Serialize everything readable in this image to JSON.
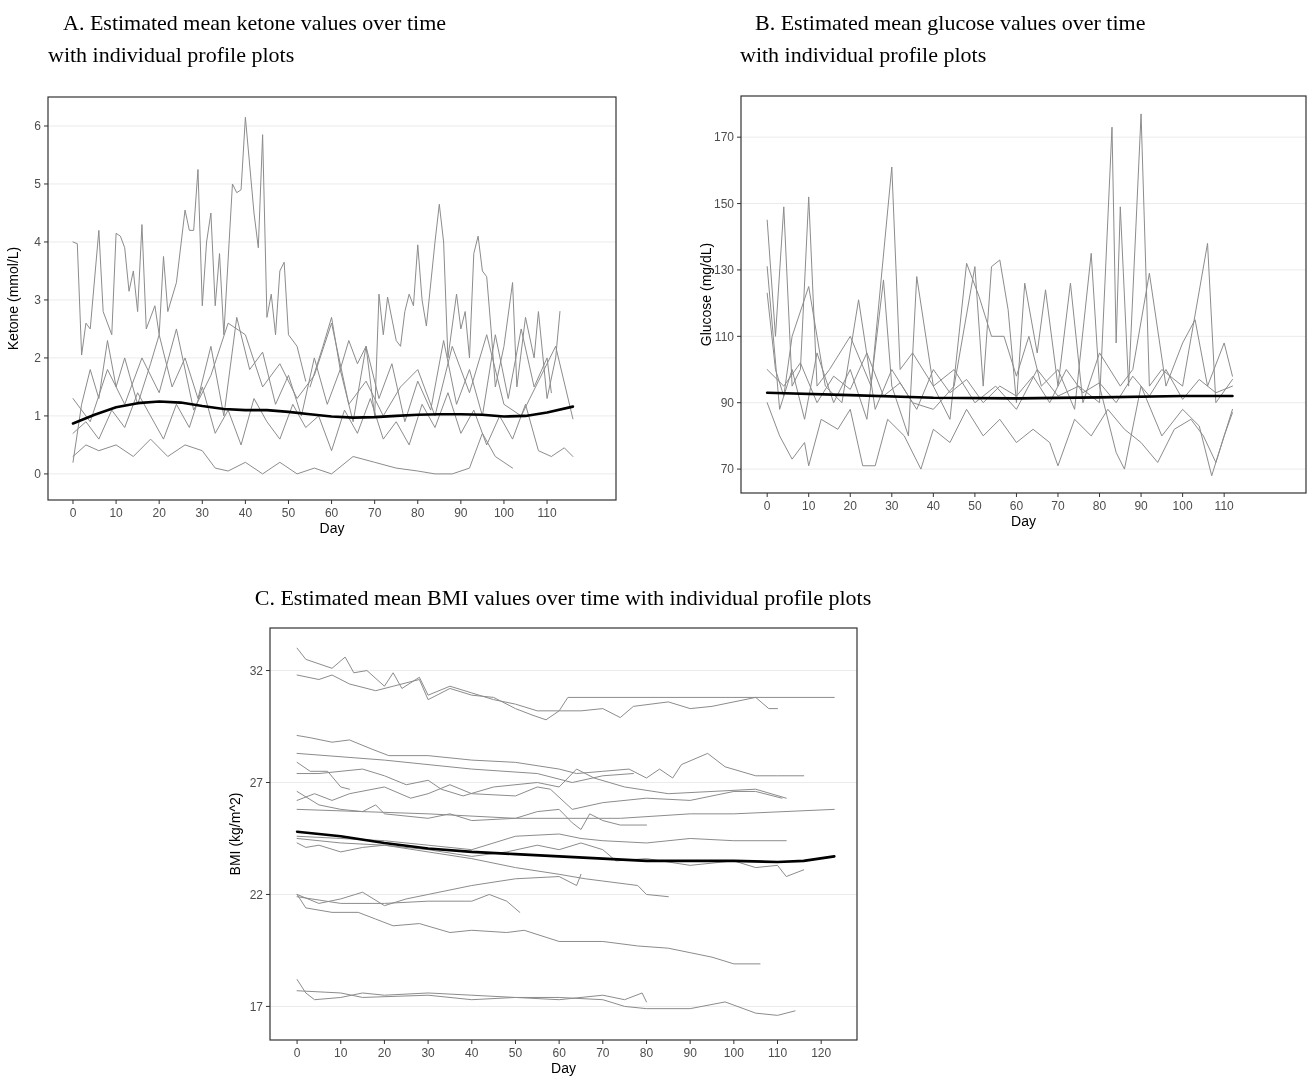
{
  "chart_data": [
    {
      "type": "line",
      "title": "A. Estimated mean ketone values over time with individual profile plots",
      "xlabel": "Day",
      "ylabel": "Ketone (mmol/L)",
      "xlim": [
        -5.8,
        126
      ],
      "ylim": [
        -0.45,
        6.5
      ],
      "xticks": [
        0,
        10,
        20,
        30,
        40,
        50,
        60,
        70,
        80,
        90,
        100,
        110
      ],
      "yticks": [
        0,
        1,
        2,
        3,
        4,
        5,
        6
      ],
      "grid": "y",
      "series": [
        {
          "color": "#8c8c8c",
          "x": [
            0,
            1,
            2,
            3,
            4,
            6,
            7,
            9,
            10,
            11,
            12,
            13,
            14,
            15,
            16,
            17,
            19,
            20,
            21,
            22,
            24,
            26,
            27,
            28,
            29,
            30,
            31,
            32,
            33,
            34,
            35,
            37,
            38,
            39,
            40,
            42,
            43,
            44,
            45,
            46,
            47,
            48,
            49,
            50,
            52,
            54
          ],
          "values": [
            4.0,
            3.97,
            2.05,
            2.6,
            2.5,
            4.2,
            2.8,
            2.4,
            4.15,
            4.1,
            3.9,
            3.15,
            3.5,
            2.8,
            4.3,
            2.5,
            2.9,
            2.4,
            3.75,
            2.8,
            3.3,
            4.55,
            4.2,
            4.2,
            5.25,
            2.9,
            4.0,
            4.5,
            2.9,
            3.8,
            2.4,
            5.0,
            4.85,
            4.9,
            6.15,
            4.5,
            3.9,
            5.85,
            2.7,
            3.1,
            2.4,
            3.5,
            3.65,
            2.4,
            2.2,
            1.6
          ]
        },
        {
          "color": "#8c8c8c",
          "x": [
            55,
            58,
            60,
            62,
            64,
            66,
            68,
            70,
            71,
            72,
            73,
            75,
            76,
            77,
            78,
            79,
            80,
            81,
            82,
            84,
            85,
            86,
            87,
            89,
            90,
            91,
            92,
            93,
            94,
            95,
            96,
            97,
            98,
            100,
            102,
            103,
            105,
            107,
            108,
            110,
            112,
            113
          ],
          "values": [
            1.5,
            2.2,
            2.7,
            1.8,
            2.3,
            1.9,
            2.2,
            1.0,
            3.1,
            2.4,
            3.05,
            2.3,
            2.2,
            2.8,
            3.1,
            2.9,
            3.95,
            3.0,
            2.55,
            4.0,
            4.65,
            4.0,
            2.0,
            3.1,
            2.5,
            2.8,
            2.0,
            3.8,
            4.1,
            3.5,
            3.4,
            2.5,
            1.5,
            2.2,
            3.3,
            1.5,
            2.7,
            2.0,
            2.8,
            1.3,
            2.0,
            2.8
          ]
        },
        {
          "color": "#8c8c8c",
          "x": [
            0,
            3,
            6,
            10,
            14,
            18,
            22,
            26,
            30,
            33,
            36,
            40,
            44,
            48,
            52,
            56,
            60,
            65,
            70,
            75,
            80,
            84,
            88,
            92,
            95,
            98,
            102
          ],
          "values": [
            0.3,
            0.5,
            0.4,
            0.5,
            0.3,
            0.6,
            0.3,
            0.5,
            0.4,
            0.1,
            0.05,
            0.2,
            0.0,
            0.2,
            0.0,
            0.1,
            0.0,
            0.3,
            0.2,
            0.1,
            0.05,
            0.0,
            0.0,
            0.1,
            0.7,
            0.3,
            0.1
          ]
        },
        {
          "color": "#8c8c8c",
          "x": [
            0,
            2,
            4,
            6,
            8,
            10,
            12,
            15,
            18,
            20,
            23,
            26,
            29,
            32,
            35,
            38,
            41,
            44,
            47,
            50,
            53,
            56,
            59,
            62,
            65,
            68,
            71,
            74,
            77,
            80,
            83,
            86,
            89,
            92,
            95,
            98,
            101,
            104,
            107,
            110,
            111
          ],
          "values": [
            0.2,
            1.2,
            1.8,
            1.3,
            2.3,
            1.5,
            2.0,
            1.2,
            1.9,
            2.4,
            1.5,
            2.0,
            1.3,
            2.2,
            1.0,
            2.7,
            1.8,
            2.1,
            1.2,
            1.7,
            1.0,
            2.0,
            1.2,
            1.8,
            0.9,
            2.2,
            1.3,
            1.9,
            0.9,
            1.6,
            1.1,
            2.3,
            1.2,
            1.8,
            1.0,
            2.4,
            1.3,
            2.5,
            1.5,
            2.0,
            1.4
          ]
        },
        {
          "color": "#8c8c8c",
          "x": [
            0,
            3,
            6,
            9,
            12,
            15,
            18,
            21,
            24,
            27,
            30,
            33,
            36,
            39,
            42,
            45,
            48,
            51,
            54,
            57,
            60,
            63,
            66,
            69,
            72,
            75,
            78,
            81,
            84,
            87,
            90,
            93,
            96,
            99,
            102,
            105,
            108,
            111,
            114,
            116
          ],
          "values": [
            0.7,
            0.9,
            0.6,
            1.1,
            0.8,
            1.4,
            1.0,
            0.6,
            1.2,
            0.8,
            1.5,
            0.7,
            1.1,
            0.5,
            1.3,
            0.9,
            0.6,
            1.2,
            0.8,
            1.0,
            0.4,
            1.1,
            0.7,
            1.3,
            0.6,
            0.9,
            0.5,
            1.2,
            0.8,
            1.4,
            0.7,
            1.1,
            0.5,
            1.0,
            0.6,
            1.2,
            0.4,
            0.3,
            0.45,
            0.3
          ]
        },
        {
          "color": "#8c8c8c",
          "x": [
            0,
            4,
            8,
            12,
            16,
            20,
            24,
            28,
            32,
            36,
            40,
            44,
            48,
            52,
            56,
            60,
            64,
            68,
            72,
            76,
            80,
            84,
            88,
            92,
            96,
            100,
            104,
            108,
            112,
            116
          ],
          "values": [
            1.3,
            0.9,
            1.8,
            1.2,
            2.0,
            1.4,
            2.5,
            1.1,
            1.7,
            2.6,
            2.4,
            1.5,
            1.9,
            1.3,
            1.7,
            2.6,
            1.2,
            1.6,
            1.0,
            1.5,
            1.8,
            1.0,
            2.2,
            1.4,
            2.4,
            1.2,
            1.0,
            1.6,
            2.2,
            0.95
          ]
        },
        {
          "color": "#000000",
          "x": [
            0,
            5,
            10,
            15,
            20,
            25,
            30,
            35,
            40,
            45,
            50,
            55,
            60,
            65,
            70,
            75,
            80,
            85,
            90,
            95,
            100,
            105,
            110,
            116
          ],
          "values": [
            0.87,
            1.02,
            1.15,
            1.22,
            1.25,
            1.23,
            1.17,
            1.12,
            1.1,
            1.1,
            1.07,
            1.03,
            0.99,
            0.97,
            0.98,
            1.0,
            1.02,
            1.03,
            1.03,
            1.02,
            0.99,
            1.0,
            1.06,
            1.16
          ]
        }
      ]
    },
    {
      "type": "line",
      "title": "B. Estimated mean glucose values over time with individual profile plots",
      "xlabel": "Day",
      "ylabel": "Glucose (mg/dL)",
      "xlim": [
        -6.3,
        129.7
      ],
      "ylim": [
        62.8,
        182.4
      ],
      "xticks": [
        0,
        10,
        20,
        30,
        40,
        50,
        60,
        70,
        80,
        90,
        100,
        110
      ],
      "yticks": [
        70,
        90,
        110,
        130,
        150,
        170
      ],
      "grid": "y",
      "series": [
        {
          "color": "#8c8c8c",
          "x": [
            0,
            2,
            4,
            6,
            8,
            10,
            12,
            15,
            20,
            25,
            30,
            32,
            35,
            40,
            45,
            50,
            55,
            60,
            65,
            70,
            75,
            80,
            83,
            84,
            85,
            87,
            90,
            92,
            95,
            100,
            106,
            108,
            112
          ],
          "values": [
            145,
            110,
            149,
            95,
            100,
            152,
            95,
            100,
            110,
            95,
            161,
            100,
            105,
            95,
            100,
            90,
            95,
            88,
            100,
            92,
            95,
            90,
            173,
            108,
            149,
            95,
            177,
            95,
            100,
            95,
            138,
            90,
            97
          ]
        },
        {
          "color": "#8c8c8c",
          "x": [
            0,
            3,
            6,
            9,
            12,
            16,
            20,
            24,
            28,
            30,
            34,
            36,
            40,
            44,
            48,
            51,
            54,
            57,
            60,
            63,
            66,
            70,
            74,
            78,
            80,
            84,
            86,
            90,
            95,
            100,
            104,
            107,
            110,
            112
          ],
          "values": [
            131,
            88,
            100,
            85,
            105,
            90,
            100,
            85,
            127,
            95,
            80,
            128,
            95,
            85,
            132,
            122,
            110,
            110,
            98,
            110,
            95,
            100,
            88,
            135,
            95,
            75,
            70,
            95,
            80,
            88,
            83,
            68,
            80,
            87
          ]
        },
        {
          "color": "#8c8c8c",
          "x": [
            0,
            2,
            4,
            6,
            10,
            14,
            18,
            22,
            26,
            30,
            35,
            40,
            45,
            50,
            52,
            54,
            56,
            58,
            60,
            62,
            65,
            67,
            70,
            73,
            76,
            80,
            85,
            88,
            92,
            96,
            100,
            103,
            106,
            110,
            112
          ],
          "values": [
            123,
            100,
            92,
            110,
            125,
            95,
            90,
            121,
            88,
            100,
            90,
            88,
            95,
            131,
            95,
            131,
            133,
            118,
            90,
            126,
            105,
            124,
            95,
            126,
            90,
            105,
            95,
            100,
            129,
            95,
            108,
            115,
            95,
            108,
            98
          ]
        },
        {
          "color": "#8c8c8c",
          "x": [
            0,
            3,
            6,
            9,
            10,
            13,
            17,
            20,
            23,
            26,
            29,
            33,
            37,
            40,
            44,
            48,
            52,
            56,
            60,
            64,
            68,
            70,
            74,
            78,
            82,
            86,
            90,
            94,
            98,
            102,
            105,
            108,
            112
          ],
          "values": [
            90,
            80,
            73,
            78,
            71,
            85,
            82,
            88,
            71,
            71,
            85,
            80,
            70,
            82,
            78,
            88,
            80,
            85,
            78,
            82,
            78,
            71,
            85,
            80,
            88,
            82,
            78,
            72,
            82,
            85,
            80,
            72,
            88
          ]
        },
        {
          "color": "#8c8c8c",
          "x": [
            0,
            4,
            8,
            12,
            16,
            20,
            24,
            28,
            32,
            36,
            40,
            44,
            48,
            52,
            56,
            60,
            64,
            68,
            72,
            76,
            80,
            84,
            88,
            92,
            96,
            100,
            104,
            108,
            112
          ],
          "values": [
            100,
            95,
            102,
            90,
            98,
            94,
            105,
            92,
            96,
            88,
            100,
            93,
            97,
            90,
            95,
            92,
            98,
            90,
            100,
            93,
            96,
            90,
            98,
            92,
            100,
            91,
            97,
            93,
            95
          ]
        },
        {
          "color": "#000000",
          "x": [
            0,
            20,
            40,
            60,
            80,
            100,
            112
          ],
          "values": [
            93,
            92.3,
            91.5,
            91.3,
            91.6,
            92,
            92
          ]
        }
      ]
    },
    {
      "type": "line",
      "title": "C. Estimated mean BMI values over time with individual profile plots",
      "xlabel": "Day",
      "ylabel": "BMI (kg/m^2)",
      "xlim": [
        -6.2,
        128.2
      ],
      "ylim": [
        15.5,
        33.9
      ],
      "xticks": [
        0,
        10,
        20,
        30,
        40,
        50,
        60,
        70,
        80,
        90,
        100,
        110,
        120
      ],
      "yticks": [
        17,
        22,
        27,
        32
      ],
      "grid": "y",
      "series": [
        {
          "color": "#8c8c8c",
          "x": [
            0,
            2,
            8,
            11,
            13,
            16,
            20,
            22,
            24,
            28,
            30,
            35,
            40,
            45,
            50,
            55,
            60,
            62,
            123
          ],
          "values": [
            33.0,
            32.5,
            32.1,
            32.6,
            31.9,
            32.0,
            31.3,
            31.9,
            31.2,
            31.7,
            30.9,
            31.3,
            31.0,
            30.7,
            30.5,
            30.2,
            30.2,
            30.8,
            30.8
          ]
        },
        {
          "color": "#8c8c8c",
          "x": [
            0,
            5,
            8,
            12,
            18,
            22,
            28,
            30,
            35,
            40,
            45,
            50,
            54,
            57,
            60,
            65,
            70,
            74,
            77,
            85,
            90,
            95,
            105,
            108,
            110
          ],
          "values": [
            31.8,
            31.6,
            31.8,
            31.4,
            31.1,
            31.3,
            31.6,
            30.7,
            31.2,
            30.9,
            30.8,
            30.3,
            30.0,
            29.8,
            30.2,
            30.2,
            30.3,
            29.9,
            30.4,
            30.6,
            30.3,
            30.4,
            30.8,
            30.3,
            30.3
          ]
        },
        {
          "color": "#8c8c8c",
          "x": [
            0,
            3,
            8,
            12,
            17,
            21,
            30,
            40,
            50,
            60,
            64,
            70,
            76,
            80,
            83,
            86,
            88,
            94,
            98,
            105,
            110,
            116
          ],
          "values": [
            29.1,
            29.0,
            28.8,
            28.9,
            28.5,
            28.2,
            28.2,
            28.0,
            27.9,
            27.6,
            27.4,
            27.5,
            27.6,
            27.2,
            27.6,
            27.2,
            27.8,
            28.3,
            27.7,
            27.3,
            27.3,
            27.3
          ]
        },
        {
          "color": "#8c8c8c",
          "x": [
            0,
            20,
            40,
            55,
            63,
            70,
            77
          ],
          "values": [
            28.3,
            28.0,
            27.6,
            27.4,
            27.0,
            27.3,
            27.4
          ]
        },
        {
          "color": "#8c8c8c",
          "x": [
            0,
            3,
            7,
            10,
            12
          ],
          "values": [
            27.9,
            27.5,
            27.5,
            26.8,
            26.7
          ]
        },
        {
          "color": "#8c8c8c",
          "x": [
            0,
            5,
            15,
            20,
            25,
            30,
            33,
            38,
            45,
            55,
            60,
            64,
            68,
            75,
            85,
            95,
            105,
            112
          ],
          "values": [
            27.4,
            27.4,
            27.6,
            27.3,
            26.9,
            27.1,
            26.7,
            26.4,
            26.8,
            27.0,
            26.8,
            27.6,
            27.2,
            26.8,
            26.5,
            26.6,
            26.7,
            26.3
          ]
        },
        {
          "color": "#8c8c8c",
          "x": [
            0,
            5,
            10,
            15,
            18,
            20,
            30,
            35,
            40,
            50,
            55,
            60,
            63,
            65,
            67,
            70,
            74,
            80
          ],
          "values": [
            26.6,
            26.0,
            25.8,
            25.7,
            26.0,
            25.6,
            25.4,
            25.6,
            25.3,
            25.4,
            25.7,
            25.8,
            25.2,
            24.9,
            25.6,
            25.3,
            25.1,
            25.1
          ]
        },
        {
          "color": "#8c8c8c",
          "x": [
            0,
            30,
            50,
            65,
            74,
            90,
            100,
            123
          ],
          "values": [
            25.8,
            25.6,
            25.4,
            25.4,
            25.4,
            25.6,
            25.6,
            25.8
          ]
        },
        {
          "color": "#8c8c8c",
          "x": [
            0,
            4,
            8,
            12,
            20,
            26,
            30,
            35,
            40,
            50,
            55,
            58,
            63,
            70,
            80,
            90,
            100,
            105,
            111
          ],
          "values": [
            26.2,
            26.5,
            26.2,
            26.5,
            26.8,
            26.3,
            26.5,
            26.9,
            26.5,
            26.4,
            26.8,
            26.7,
            25.8,
            26.1,
            26.3,
            26.2,
            26.6,
            26.6,
            26.3
          ]
        },
        {
          "color": "#8c8c8c",
          "x": [
            0,
            10,
            20,
            30,
            40,
            50,
            60,
            65,
            70,
            80,
            90,
            100,
            112
          ],
          "values": [
            24.6,
            24.5,
            24.4,
            24.2,
            24.0,
            24.6,
            24.7,
            24.5,
            24.4,
            24.3,
            24.5,
            24.4,
            24.4
          ]
        },
        {
          "color": "#8c8c8c",
          "x": [
            0,
            2,
            5,
            10,
            15,
            20,
            30,
            40,
            48,
            55,
            60,
            65,
            70,
            73,
            80,
            90,
            100,
            105,
            110,
            112,
            116
          ],
          "values": [
            24.3,
            24.1,
            24.2,
            23.9,
            24.1,
            24.2,
            24.0,
            23.7,
            23.9,
            24.2,
            24.0,
            24.3,
            24.0,
            23.5,
            23.6,
            23.3,
            23.5,
            23.2,
            23.3,
            22.8,
            23.1
          ]
        },
        {
          "color": "#8c8c8c",
          "x": [
            0,
            10,
            20,
            30,
            40,
            50,
            60,
            66,
            70,
            78,
            80,
            85
          ],
          "values": [
            24.5,
            24.3,
            24.2,
            23.9,
            23.6,
            23.2,
            22.9,
            22.7,
            22.6,
            22.4,
            22.0,
            21.9
          ]
        },
        {
          "color": "#8c8c8c",
          "x": [
            0,
            5,
            10,
            15,
            20,
            25,
            30,
            40,
            50,
            60,
            64,
            65
          ],
          "values": [
            22.0,
            21.6,
            21.8,
            22.1,
            21.5,
            21.8,
            22.0,
            22.4,
            22.7,
            22.8,
            22.4,
            22.9
          ]
        },
        {
          "color": "#8c8c8c",
          "x": [
            0,
            10,
            20,
            30,
            40,
            44,
            48,
            51
          ],
          "values": [
            21.9,
            21.6,
            21.6,
            21.7,
            21.7,
            22.0,
            21.7,
            21.2
          ]
        },
        {
          "color": "#8c8c8c",
          "x": [
            0,
            2,
            8,
            14,
            18,
            22,
            28,
            35,
            40,
            48,
            52,
            60,
            70,
            78,
            85,
            90,
            95,
            100,
            106
          ],
          "values": [
            22.0,
            21.4,
            21.2,
            21.2,
            20.9,
            20.6,
            20.7,
            20.3,
            20.4,
            20.3,
            20.4,
            19.9,
            19.9,
            19.7,
            19.6,
            19.4,
            19.2,
            18.9,
            18.9
          ]
        },
        {
          "color": "#8c8c8c",
          "x": [
            0,
            2,
            4,
            10,
            15,
            20,
            30,
            40,
            50,
            60,
            70,
            75,
            80,
            90,
            98,
            105,
            110,
            114
          ],
          "values": [
            18.2,
            17.6,
            17.3,
            17.4,
            17.6,
            17.5,
            17.6,
            17.5,
            17.4,
            17.4,
            17.3,
            17.0,
            16.9,
            16.9,
            17.2,
            16.7,
            16.6,
            16.8
          ]
        },
        {
          "color": "#8c8c8c",
          "x": [
            0,
            10,
            15,
            30,
            40,
            50,
            60,
            70,
            75,
            79,
            80
          ],
          "values": [
            17.7,
            17.6,
            17.4,
            17.5,
            17.3,
            17.4,
            17.3,
            17.5,
            17.3,
            17.6,
            17.2
          ]
        },
        {
          "color": "#000000",
          "x": [
            0,
            10,
            20,
            30,
            40,
            50,
            60,
            70,
            80,
            90,
            100,
            110,
            116,
            123
          ],
          "values": [
            24.8,
            24.6,
            24.3,
            24.05,
            23.9,
            23.8,
            23.7,
            23.6,
            23.5,
            23.5,
            23.5,
            23.45,
            23.5,
            23.7
          ]
        }
      ]
    }
  ]
}
